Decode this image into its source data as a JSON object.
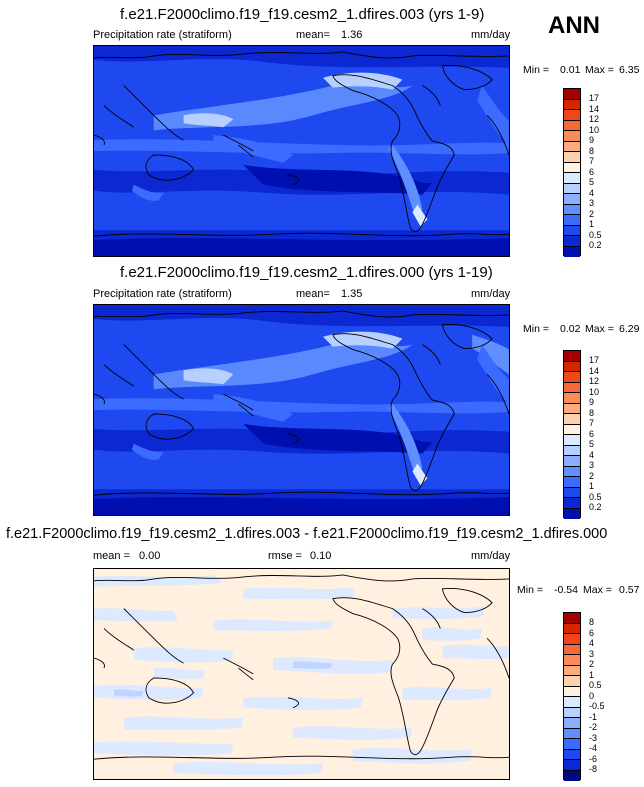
{
  "season": "ANN",
  "panels": [
    {
      "title": "f.e21.F2000climo.f19_f19.cesm2_1.dfires.003 (yrs 1-9)",
      "left_label": "Precipitation rate (stratiform)",
      "stat_label": "mean=",
      "stat_value": "1.36",
      "units": "mm/day",
      "min_label": "Min =",
      "min_value": "0.01",
      "max_label": "Max =",
      "max_value": "6.35",
      "colorbar_colors": [
        "#a50000",
        "#d42400",
        "#f0461a",
        "#f46a3a",
        "#f98c5a",
        "#fcac80",
        "#fdd0b0",
        "#fff0e0",
        "#dde9ff",
        "#b8d0ff",
        "#8cb0ff",
        "#6090ff",
        "#3c6cff",
        "#1e48f0",
        "#0c28d2",
        "#0010b0",
        "#000a80"
      ],
      "colorbar_labels": [
        "17",
        "14",
        "12",
        "10",
        "9",
        "8",
        "7",
        "6",
        "5",
        "4",
        "3",
        "2",
        "1",
        "0.5",
        "0.2"
      ]
    },
    {
      "title": "f.e21.F2000climo.f19_f19.cesm2_1.dfires.000 (yrs 1-19)",
      "left_label": "Precipitation rate (stratiform)",
      "stat_label": "mean=",
      "stat_value": "1.35",
      "units": "mm/day",
      "min_label": "Min =",
      "min_value": "0.02",
      "max_label": "Max =",
      "max_value": "6.29",
      "colorbar_colors": [
        "#a50000",
        "#d42400",
        "#f0461a",
        "#f46a3a",
        "#f98c5a",
        "#fcac80",
        "#fdd0b0",
        "#fff0e0",
        "#dde9ff",
        "#b8d0ff",
        "#8cb0ff",
        "#6090ff",
        "#3c6cff",
        "#1e48f0",
        "#0c28d2",
        "#0010b0",
        "#000a80"
      ],
      "colorbar_labels": [
        "17",
        "14",
        "12",
        "10",
        "9",
        "8",
        "7",
        "6",
        "5",
        "4",
        "3",
        "2",
        "1",
        "0.5",
        "0.2"
      ]
    },
    {
      "title": "f.e21.F2000climo.f19_f19.cesm2_1.dfires.003 - f.e21.F2000climo.f19_f19.cesm2_1.dfires.000",
      "left_label": "mean =",
      "left_value": "0.00",
      "stat_label": "rmse =",
      "stat_value": "0.10",
      "units": "mm/day",
      "min_label": "Min =",
      "min_value": "-0.54",
      "max_label": "Max =",
      "max_value": "0.57",
      "colorbar_colors": [
        "#a50000",
        "#d42400",
        "#f0461a",
        "#f46a3a",
        "#f98c5a",
        "#fcac80",
        "#fdd0b0",
        "#fff0e0",
        "#fff0e0",
        "#dde9ff",
        "#b8d0ff",
        "#8cb0ff",
        "#6090ff",
        "#3c6cff",
        "#1e48f0",
        "#0c28d2",
        "#000a80"
      ],
      "colorbar_labels": [
        "8",
        "6",
        "4",
        "3",
        "2",
        "1",
        "0.5",
        "0",
        "-0.5",
        "-1",
        "-2",
        "-3",
        "-4",
        "-6",
        "-8"
      ]
    }
  ]
}
